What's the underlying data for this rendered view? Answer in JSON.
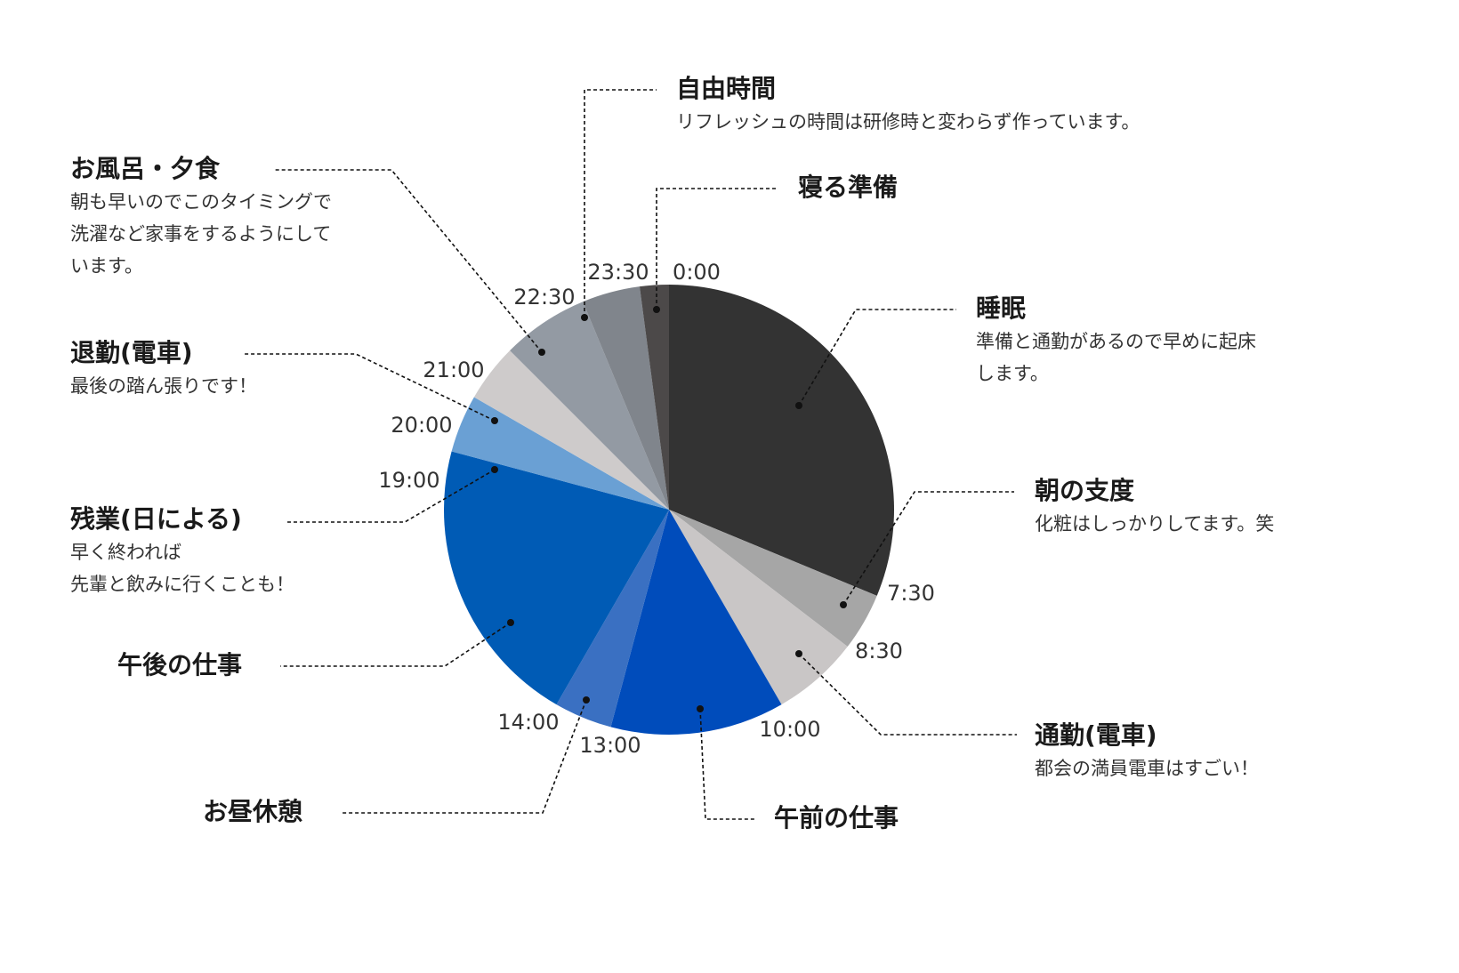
{
  "chart_data": {
    "type": "pie",
    "unit": "time of day (24h clock, clockwise from top)",
    "slices": [
      {
        "start": "0:00",
        "end": "7:30",
        "label": "睡眠",
        "description": "準備と通勤があるので早めに起床\nします。",
        "color": "#333333"
      },
      {
        "start": "7:30",
        "end": "8:30",
        "label": "朝の支度",
        "description": "化粧はしっかりしてます。笑",
        "color": "#a6a6a6"
      },
      {
        "start": "8:30",
        "end": "10:00",
        "label": "通勤(電車)",
        "description": "都会の満員電車はすごい！",
        "color": "#c9c6c6"
      },
      {
        "start": "10:00",
        "end": "13:00",
        "label": "午前の仕事",
        "description": "",
        "color": "#004cbb"
      },
      {
        "start": "13:00",
        "end": "14:00",
        "label": "お昼休憩",
        "description": "",
        "color": "#3a70c2"
      },
      {
        "start": "14:00",
        "end": "19:00",
        "label": "午後の仕事",
        "description": "",
        "color": "#005bb5"
      },
      {
        "start": "19:00",
        "end": "20:00",
        "label": "残業(日による)",
        "description": "早く終われば\n先輩と飲みに行くことも！",
        "color": "#6aa0d4"
      },
      {
        "start": "20:00",
        "end": "21:00",
        "label": "退勤(電車)",
        "description": "最後の踏ん張りです！",
        "color": "#cecbcb"
      },
      {
        "start": "21:00",
        "end": "22:30",
        "label": "お風呂・夕食",
        "description": "朝も早いのでこのタイミングで\n洗濯など家事をするようにして\nいます。",
        "color": "#939aa3"
      },
      {
        "start": "22:30",
        "end": "23:30",
        "label": "自由時間",
        "description": "リフレッシュの時間は研修時と変わらず作っています。",
        "color": "#80858c"
      },
      {
        "start": "23:30",
        "end": "0:00",
        "label": "寝る準備",
        "description": "",
        "color": "#4c4949"
      }
    ],
    "tick_labels": [
      "0:00",
      "7:30",
      "8:30",
      "10:00",
      "13:00",
      "14:00",
      "19:00",
      "20:00",
      "21:00",
      "22:30",
      "23:30"
    ]
  }
}
